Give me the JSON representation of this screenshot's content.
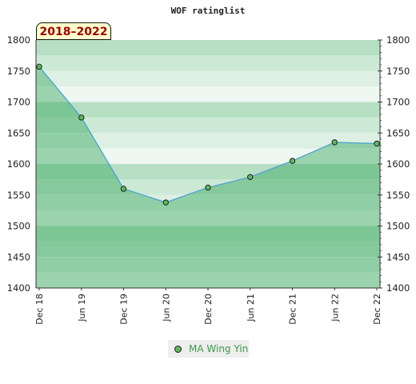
{
  "chart_data": {
    "type": "line",
    "title": "WOF ratinglist",
    "period_label": "2018–2022",
    "categories": [
      "Dec 18",
      "Jun 19",
      "Dec 19",
      "Jun 20",
      "Dec 20",
      "Jun 21",
      "Dec 21",
      "Jun 22",
      "Dec 22"
    ],
    "series": [
      {
        "name": "MA Wing Yin",
        "values": [
          1757,
          1675,
          1560,
          1538,
          1562,
          1579,
          1605,
          1635,
          1633
        ]
      }
    ],
    "ylim": [
      1400,
      1800
    ],
    "yticks": [
      1400,
      1450,
      1500,
      1550,
      1600,
      1650,
      1700,
      1750,
      1800
    ],
    "colors": {
      "line": "#4da3d4",
      "marker": "#5cb85c",
      "legend_text": "#3a9a44",
      "period_text": "#a00000"
    }
  }
}
